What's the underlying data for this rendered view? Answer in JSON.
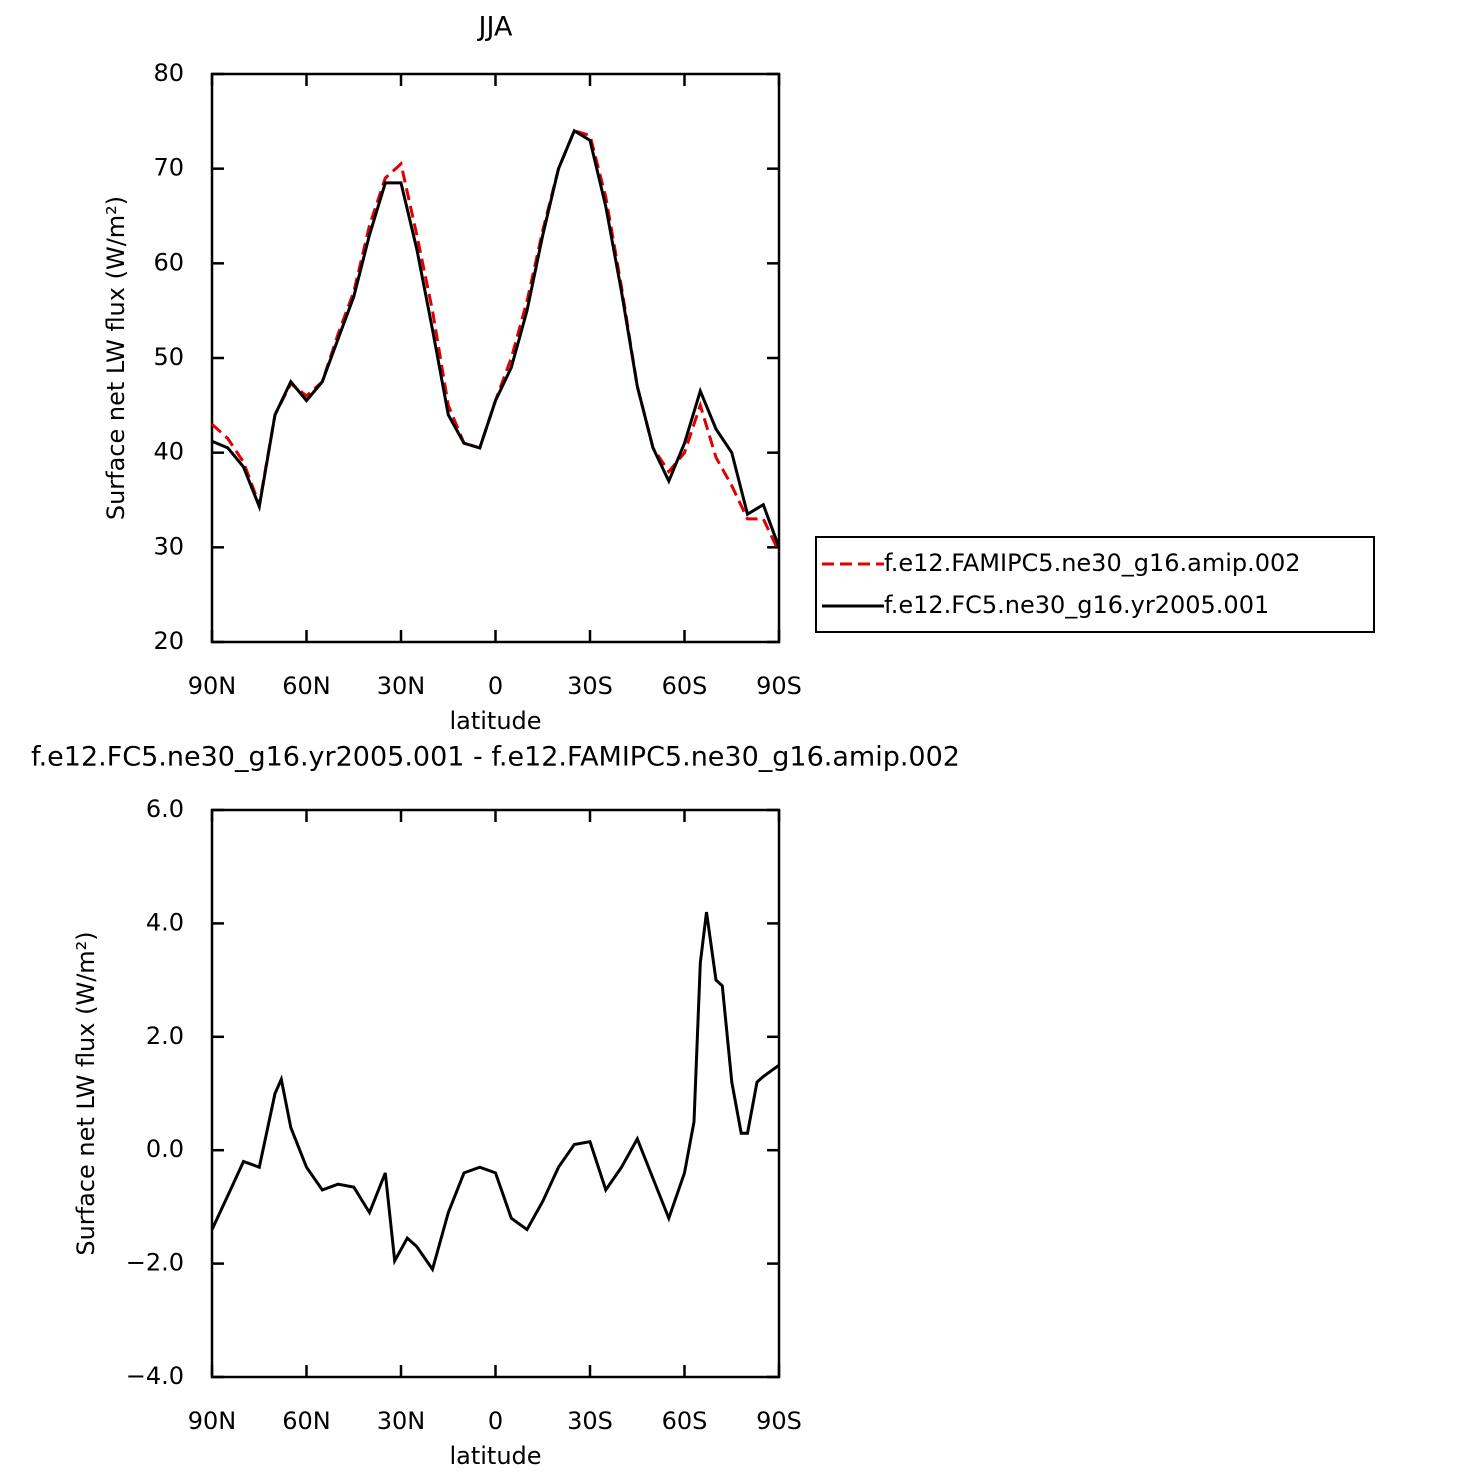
{
  "chart_data": [
    {
      "type": "line",
      "title": "JJA",
      "xlabel": "latitude",
      "ylabel": "Surface net LW flux (W/m²)",
      "x": [
        90,
        85,
        80,
        75,
        70,
        65,
        60,
        55,
        50,
        45,
        40,
        35,
        30,
        25,
        20,
        15,
        10,
        5,
        0,
        -5,
        -10,
        -15,
        -20,
        -25,
        -30,
        -35,
        -40,
        -45,
        -50,
        -55,
        -60,
        -65,
        -70,
        -75,
        -80,
        -85,
        -90
      ],
      "series": [
        {
          "name": "f.e12.FAMIPC5.ne30_g16.amip.002",
          "color": "#e00000",
          "dash": true,
          "values": [
            43,
            41.5,
            39,
            34.5,
            44,
            47.3,
            46,
            47.5,
            52.5,
            57,
            64,
            69,
            70.5,
            63,
            55,
            45,
            41,
            40.5,
            45.5,
            50,
            56,
            63.5,
            70,
            74,
            73.5,
            67,
            57.5,
            47,
            40.5,
            38,
            40,
            45,
            39.5,
            36.5,
            33,
            33,
            29.5
          ]
        },
        {
          "name": "f.e12.FC5.ne30_g16.yr2005.001",
          "color": "#000000",
          "dash": false,
          "values": [
            41.2,
            40.5,
            38.5,
            34.3,
            44,
            47.5,
            45.5,
            47.5,
            52,
            56.5,
            63,
            68.5,
            68.5,
            61.5,
            53,
            44,
            41,
            40.5,
            45.5,
            49,
            55,
            63,
            70,
            74,
            73,
            66,
            57,
            47,
            40.5,
            37,
            41,
            46.5,
            42.5,
            40,
            33.5,
            34.5,
            30
          ]
        }
      ],
      "xlim": [
        90,
        -90
      ],
      "xticks": [
        {
          "value": 90,
          "label": "90N"
        },
        {
          "value": 60,
          "label": "60N"
        },
        {
          "value": 30,
          "label": "30N"
        },
        0,
        {
          "value": -30,
          "label": "30S"
        },
        {
          "value": -60,
          "label": "60S"
        },
        {
          "value": -90,
          "label": "90S"
        }
      ],
      "ylim": [
        20,
        80
      ],
      "yticks": [
        20,
        30,
        40,
        50,
        60,
        70,
        80
      ],
      "legend": "right"
    },
    {
      "type": "line",
      "title": "f.e12.FC5.ne30_g16.yr2005.001 - f.e12.FAMIPC5.ne30_g16.amip.002",
      "xlabel": "latitude",
      "ylabel": "Surface net LW flux (W/m²)",
      "x": [
        90,
        85,
        80,
        75,
        70,
        68,
        65,
        60,
        55,
        50,
        45,
        40,
        35,
        32,
        28,
        25,
        20,
        15,
        10,
        5,
        0,
        -5,
        -10,
        -15,
        -20,
        -25,
        -30,
        -35,
        -40,
        -45,
        -50,
        -55,
        -60,
        -63,
        -65,
        -67,
        -70,
        -72,
        -75,
        -78,
        -80,
        -83,
        -85,
        -90
      ],
      "series": [
        {
          "color": "#000000",
          "dash": false,
          "values": [
            -1.4,
            -0.8,
            -0.2,
            -0.3,
            1.0,
            1.25,
            0.4,
            -0.3,
            -0.7,
            -0.6,
            -0.65,
            -1.1,
            -0.4,
            -1.95,
            -1.55,
            -1.7,
            -2.1,
            -1.1,
            -0.4,
            -0.3,
            -0.4,
            -1.2,
            -1.4,
            -0.9,
            -0.3,
            0.1,
            0.15,
            -0.7,
            -0.3,
            0.2,
            -0.5,
            -1.2,
            -0.4,
            0.5,
            3.3,
            4.2,
            3.0,
            2.9,
            1.2,
            0.3,
            0.3,
            1.2,
            1.3,
            1.5
          ]
        }
      ],
      "xlim": [
        90,
        -90
      ],
      "xticks": [
        {
          "value": 90,
          "label": "90N"
        },
        {
          "value": 60,
          "label": "60N"
        },
        {
          "value": 30,
          "label": "30N"
        },
        0,
        {
          "value": -30,
          "label": "30S"
        },
        {
          "value": -60,
          "label": "60S"
        },
        {
          "value": -90,
          "label": "90S"
        }
      ],
      "ylim": [
        -4,
        6
      ],
      "yticks": [
        {
          "value": -4,
          "label": "−4.0"
        },
        {
          "value": -2,
          "label": "−2.0"
        },
        {
          "value": 0,
          "label": "0.0"
        },
        {
          "value": 2,
          "label": "2.0"
        },
        {
          "value": 4,
          "label": "4.0"
        },
        {
          "value": 6,
          "label": "6.0"
        }
      ]
    }
  ]
}
